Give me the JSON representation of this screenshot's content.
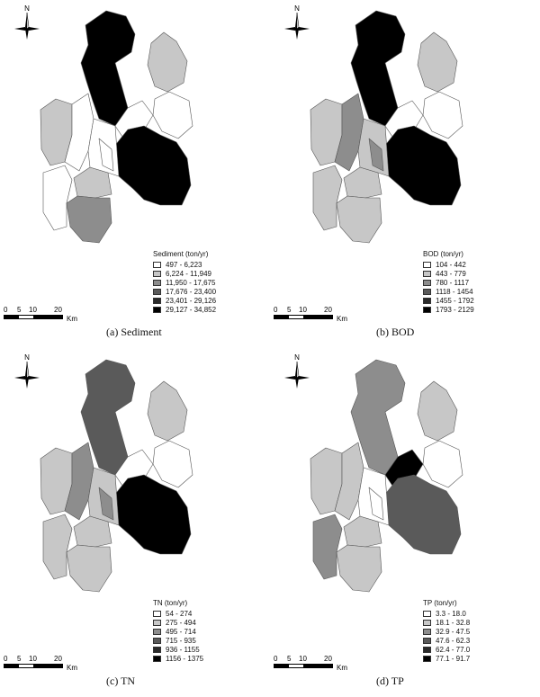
{
  "panels": [
    {
      "id": "sediment",
      "caption": "(a)  Sediment",
      "north_label": "N",
      "legend_title": "Sediment (ton/yr)",
      "classes": [
        "497 - 6,223",
        "6,224 - 11,949",
        "11,950 - 17,675",
        "17,676 - 23,400",
        "23,401 - 29,126",
        "29,127 - 34,852"
      ],
      "scale_ticks": [
        "0",
        "5",
        "10",
        "20"
      ],
      "scale_unit": "Km",
      "region_classes": {
        "north": 5,
        "northeast": 1,
        "east_small": 0,
        "central": 0,
        "southeast": 5,
        "west": 1,
        "west_mid": 0,
        "southwest": 0,
        "south_center": 1,
        "south": 2,
        "mid_strip": 0,
        "mid_small": 0
      }
    },
    {
      "id": "bod",
      "caption": "(b)  BOD",
      "north_label": "N",
      "legend_title": "BOD (ton/yr)",
      "classes": [
        "104 - 442",
        "443 - 779",
        "780 - 1117",
        "1118 - 1454",
        "1455 - 1792",
        "1793 - 2129"
      ],
      "scale_ticks": [
        "0",
        "5",
        "10",
        "20"
      ],
      "scale_unit": "Km",
      "region_classes": {
        "north": 5,
        "northeast": 1,
        "east_small": 0,
        "central": 0,
        "southeast": 5,
        "west": 1,
        "west_mid": 2,
        "southwest": 1,
        "south_center": 1,
        "south": 1,
        "mid_strip": 1,
        "mid_small": 2
      }
    },
    {
      "id": "tn",
      "caption": "(c)  TN",
      "north_label": "N",
      "legend_title": "TN (ton/yr)",
      "classes": [
        "54 - 274",
        "275 - 494",
        "495 - 714",
        "715 - 935",
        "936 - 1155",
        "1156 - 1375"
      ],
      "scale_ticks": [
        "0",
        "5",
        "10",
        "20"
      ],
      "scale_unit": "Km",
      "region_classes": {
        "north": 3,
        "northeast": 1,
        "east_small": 0,
        "central": 0,
        "southeast": 5,
        "west": 1,
        "west_mid": 2,
        "southwest": 1,
        "south_center": 1,
        "south": 1,
        "mid_strip": 1,
        "mid_small": 2
      }
    },
    {
      "id": "tp",
      "caption": "(d)  TP",
      "north_label": "N",
      "legend_title": "TP (ton/yr)",
      "classes": [
        "3.3 - 18.0",
        "18.1 - 32.8",
        "32.9 - 47.5",
        "47.6 - 62.3",
        "62.4 - 77.0",
        "77.1 - 91.7"
      ],
      "scale_ticks": [
        "0",
        "5",
        "10",
        "20"
      ],
      "scale_unit": "Km",
      "region_classes": {
        "north": 2,
        "northeast": 1,
        "east_small": 0,
        "central": 5,
        "southeast": 3,
        "west": 1,
        "west_mid": 1,
        "southwest": 2,
        "south_center": 1,
        "south": 1,
        "mid_strip": 0,
        "mid_small": 0
      }
    }
  ],
  "colors": {
    "class_fills": [
      "#ffffff",
      "#c7c7c7",
      "#8d8d8d",
      "#5a5a5a",
      "#2a2a2a",
      "#000000"
    ],
    "outline": "#555555"
  }
}
